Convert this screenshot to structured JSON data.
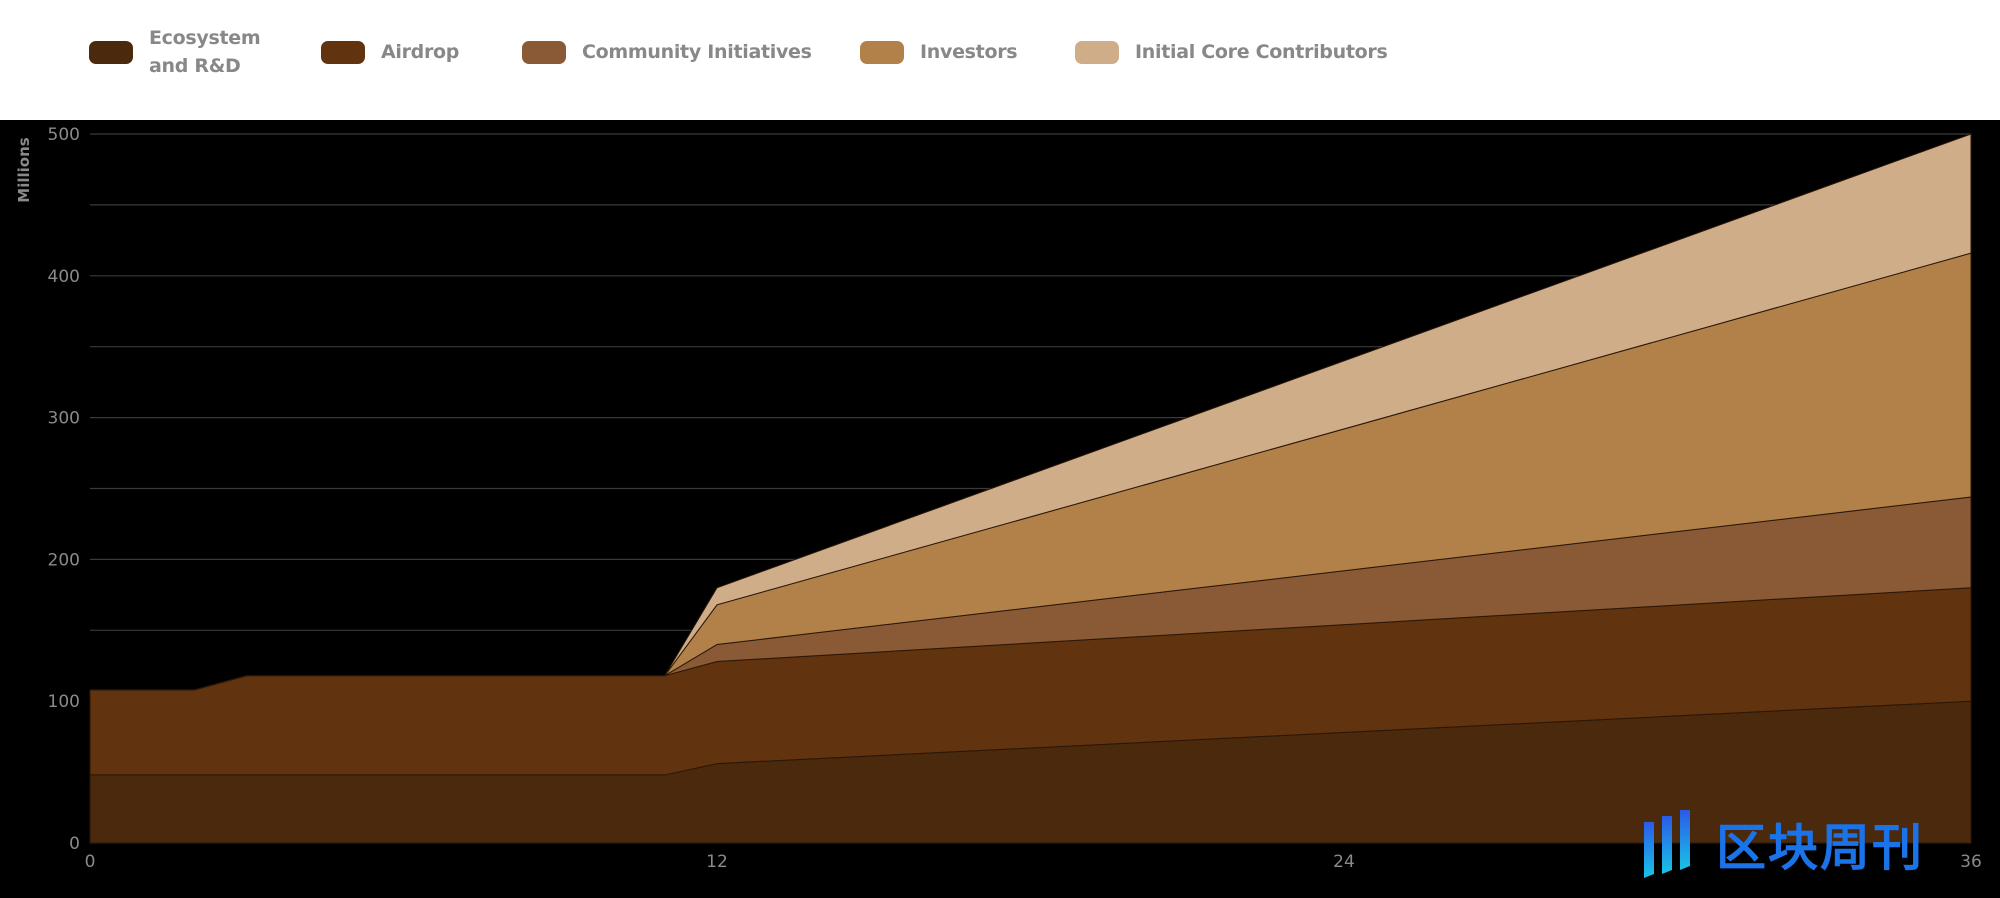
{
  "legend": {
    "items": [
      {
        "label_lines": [
          "Ecosystem",
          "and R&D"
        ],
        "color": "#4a290c"
      },
      {
        "label_lines": [
          "Airdrop"
        ],
        "color": "#61330e"
      },
      {
        "label_lines": [
          "Community Initiatives"
        ],
        "color": "#8a5a36"
      },
      {
        "label_lines": [
          "Investors"
        ],
        "color": "#b2814a"
      },
      {
        "label_lines": [
          "Initial Core Contributors"
        ],
        "color": "#d0ad89"
      }
    ]
  },
  "chart_data": {
    "type": "area",
    "stacked": true,
    "ylabel": "Millions",
    "xlabel": "",
    "ylim": [
      0,
      500
    ],
    "xlim": [
      0,
      36
    ],
    "y_ticks": [
      0,
      100,
      200,
      300,
      400,
      500
    ],
    "x_ticks": [
      0,
      12,
      24,
      36
    ],
    "grid": true,
    "legend_position": "top",
    "x": [
      0,
      2,
      3,
      11,
      12,
      36
    ],
    "series": [
      {
        "name": "Ecosystem and R&D",
        "values": [
          48,
          48,
          48,
          48,
          56,
          100
        ]
      },
      {
        "name": "Airdrop",
        "values": [
          60,
          60,
          70,
          70,
          72,
          80
        ]
      },
      {
        "name": "Community Initiatives",
        "values": [
          0,
          0,
          0,
          0,
          12,
          64
        ]
      },
      {
        "name": "Investors",
        "values": [
          0,
          0,
          0,
          0,
          28,
          172
        ]
      },
      {
        "name": "Initial Core Contributors",
        "values": [
          0,
          0,
          0,
          0,
          12,
          84
        ]
      }
    ],
    "background": "#000000",
    "grid_color": "#3a3a3a"
  },
  "watermark": {
    "text": "区块周刊",
    "color": "#1a73e8"
  }
}
